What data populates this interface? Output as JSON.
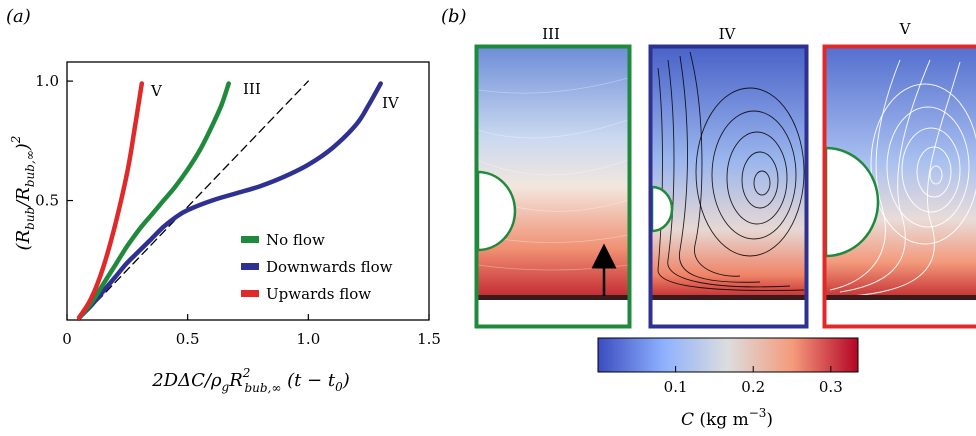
{
  "panel_a": {
    "label": "(a)",
    "ylabel_html": "(R<tspan font-size='12' dy='5'>bub</tspan><tspan dy='-5'>/</tspan>R<tspan font-size='12' dy='5'>bub,∞</tspan><tspan dy='-5'>)</tspan><tspan font-size='12' dy='-9'>2</tspan>",
    "xlabel_html": "2DΔC/ρ<tspan font-size='12' dy='5'>g</tspan><tspan dy='-5'>R</tspan><tspan font-size='12' dy='-9'>2</tspan><tspan font-size='12' dx='-6' dy='15'>bub,∞</tspan><tspan dy='-6'> (t − t</tspan><tspan font-size='12' dy='5'>0</tspan><tspan dy='-5'>)</tspan>",
    "curve_labels": {
      "V": "V",
      "III": "III",
      "IV": "IV"
    }
  },
  "panel_b": {
    "label": "(b)",
    "panels": [
      {
        "label": "III",
        "border_color": "#1f8a3c"
      },
      {
        "label": "IV",
        "border_color": "#2e3192"
      },
      {
        "label": "V",
        "border_color": "#e02a2a"
      }
    ],
    "colorbar": {
      "ticks": [
        "0.1",
        "0.2",
        "0.3"
      ],
      "tick_values": [
        0.1,
        0.2,
        0.3
      ],
      "range": [
        0.0,
        0.335
      ],
      "label_html": "<tspan font-style='italic'>C</tspan> (kg m<tspan font-size='12' dy='-8'>−3</tspan><tspan dy='8'>)</tspan>"
    }
  },
  "chart_data": {
    "type": "line",
    "title": "",
    "xlabel": "2DΔC/ρ_g R²_bub,∞ (t − t0)",
    "ylabel": "(R_bub/R_bub,∞)²",
    "xlim": [
      0,
      1.5
    ],
    "ylim": [
      0,
      1.08
    ],
    "xticks": [
      "0",
      "0.5",
      "1.0",
      "1.5"
    ],
    "xtick_values": [
      0,
      0.5,
      1.0,
      1.5
    ],
    "yticks": [
      "0.5",
      "1.0"
    ],
    "ytick_values": [
      0.5,
      1.0
    ],
    "legend_position": "bottom-right",
    "series": [
      {
        "name": "No flow",
        "label": "III",
        "color": "#1f8a3c",
        "x": [
          0.05,
          0.1,
          0.15,
          0.2,
          0.25,
          0.3,
          0.35,
          0.4,
          0.45,
          0.5,
          0.55,
          0.6,
          0.64,
          0.67
        ],
        "y": [
          0.01,
          0.07,
          0.15,
          0.23,
          0.31,
          0.38,
          0.44,
          0.5,
          0.56,
          0.63,
          0.71,
          0.81,
          0.9,
          0.99
        ]
      },
      {
        "name": "Downwards flow",
        "label": "IV",
        "color": "#2e3192",
        "x": [
          0.05,
          0.1,
          0.15,
          0.2,
          0.25,
          0.3,
          0.35,
          0.4,
          0.45,
          0.5,
          0.6,
          0.7,
          0.8,
          0.9,
          1.0,
          1.1,
          1.2,
          1.25,
          1.3
        ],
        "y": [
          0.01,
          0.06,
          0.12,
          0.18,
          0.24,
          0.29,
          0.34,
          0.39,
          0.43,
          0.46,
          0.5,
          0.53,
          0.56,
          0.6,
          0.65,
          0.72,
          0.82,
          0.9,
          0.99
        ]
      },
      {
        "name": "Upwards flow",
        "label": "V",
        "color": "#e02a2a",
        "x": [
          0.05,
          0.1,
          0.15,
          0.2,
          0.25,
          0.28,
          0.31
        ],
        "y": [
          0.01,
          0.09,
          0.22,
          0.4,
          0.62,
          0.8,
          0.99
        ]
      },
      {
        "name": "",
        "color": "#000000",
        "dashed": true,
        "x": [
          0.05,
          1.0
        ],
        "y": [
          0.0,
          1.0
        ]
      }
    ]
  }
}
